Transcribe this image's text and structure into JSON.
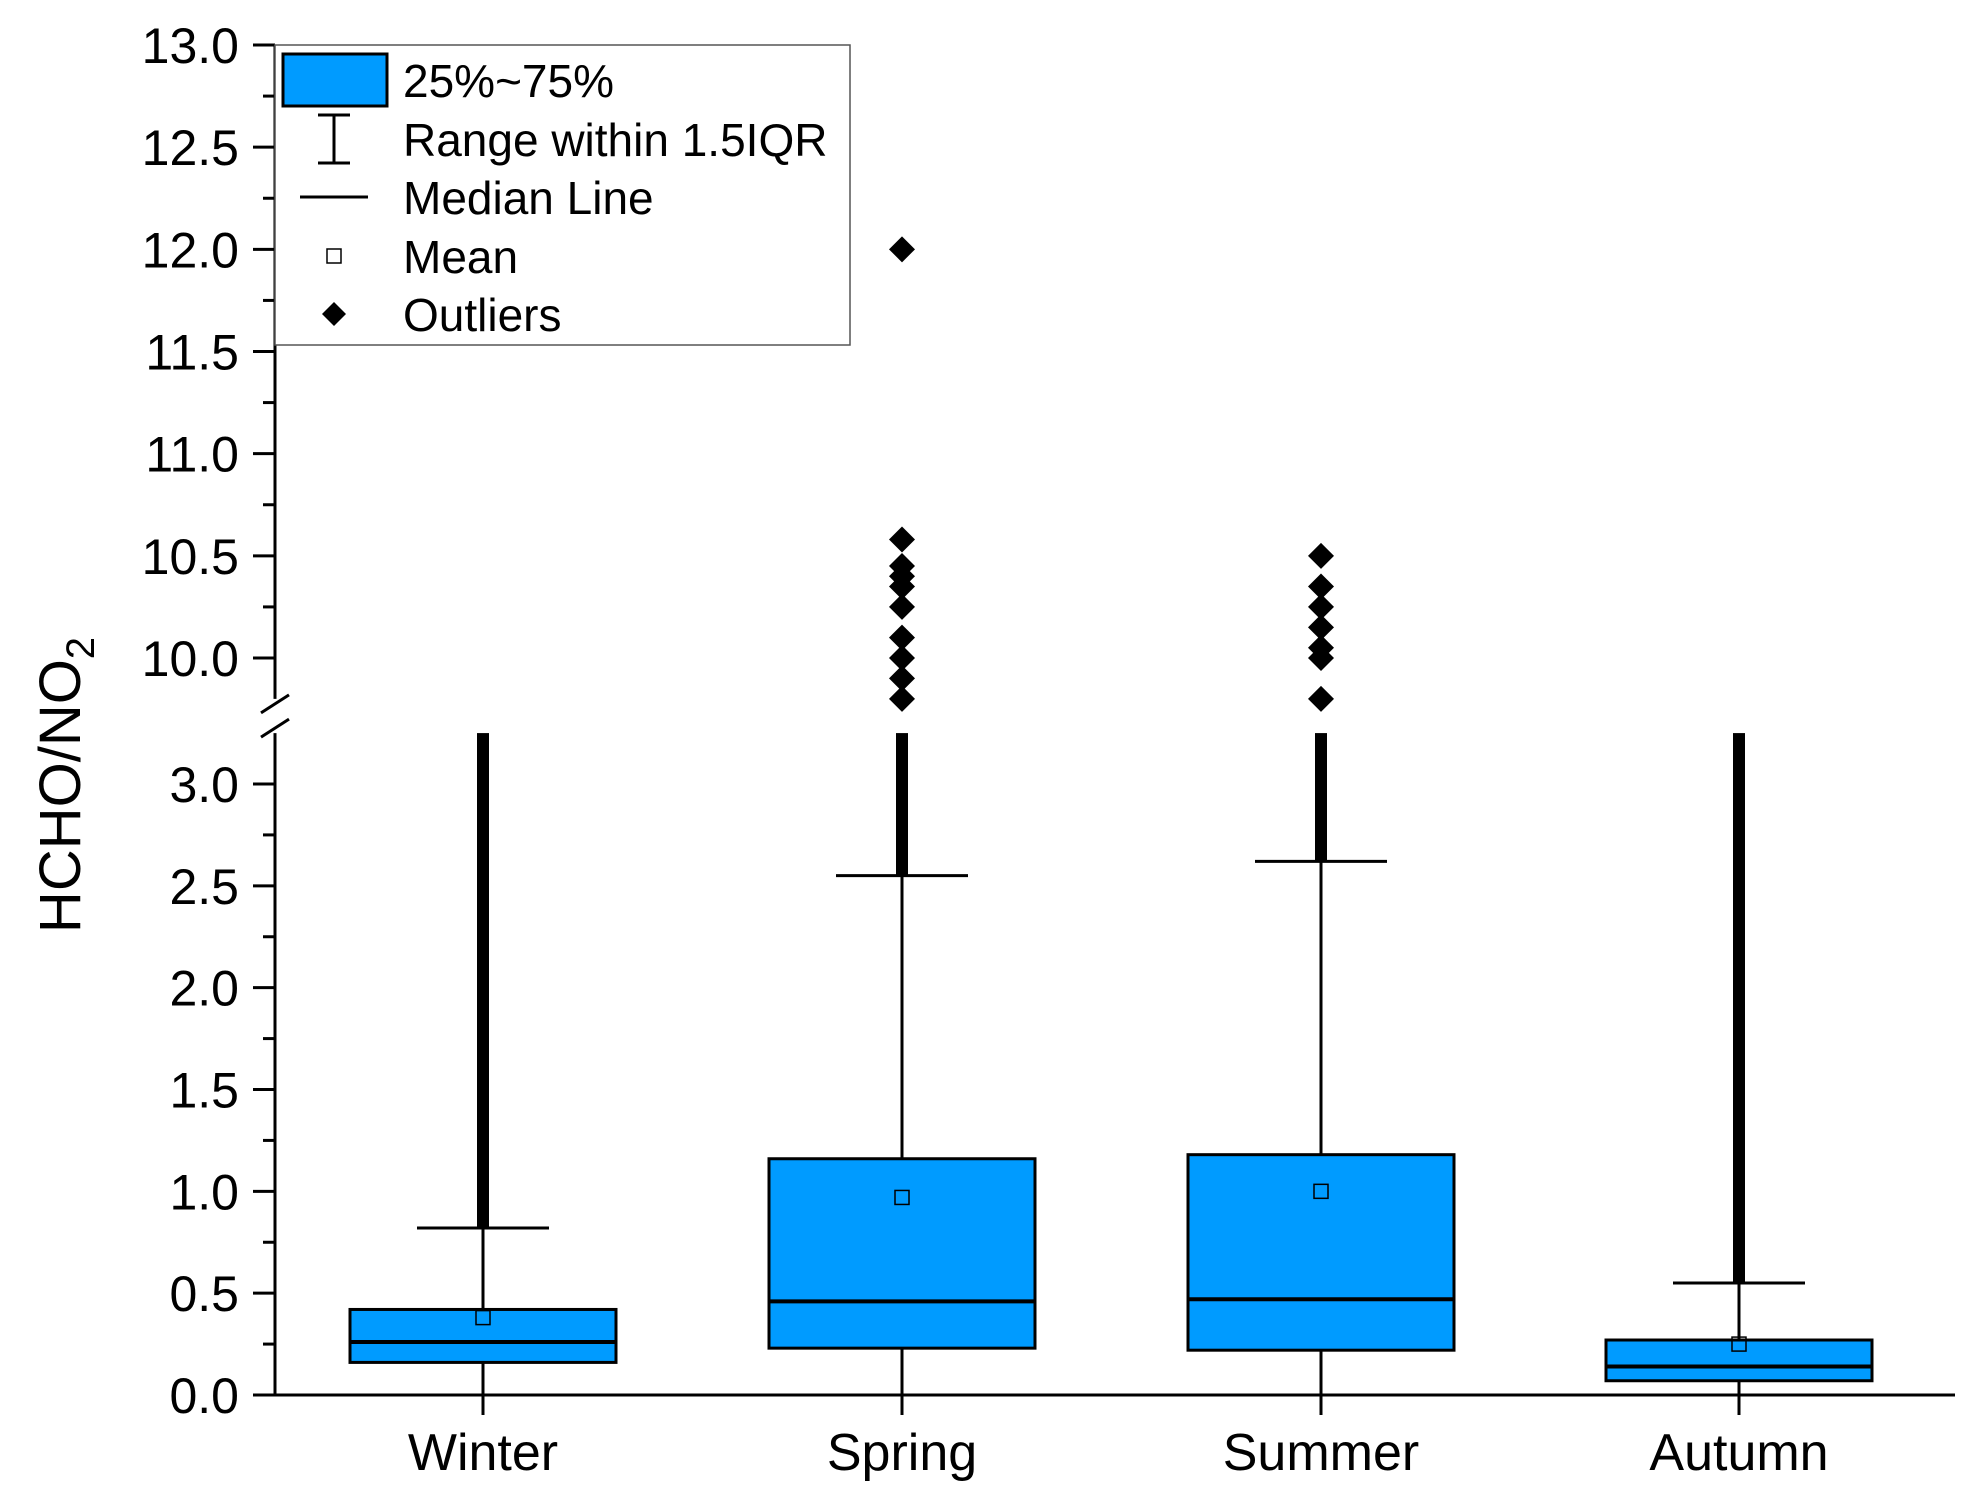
{
  "colors": {
    "box_fill": "#009BFF",
    "stroke": "#000000",
    "background": "#ffffff"
  },
  "chart_data": {
    "type": "box",
    "title": "",
    "xlabel": "",
    "ylabel": "HCHO/NO",
    "ylabel_subscript": "2",
    "categories": [
      "Winter",
      "Spring",
      "Summer",
      "Autumn"
    ],
    "axis_break": {
      "lower_range": [
        0,
        3.25
      ],
      "upper_range": [
        9.8,
        13.0
      ]
    },
    "lower_ticks": [
      "0.0",
      "0.5",
      "1.0",
      "1.5",
      "2.0",
      "2.5",
      "3.0"
    ],
    "upper_ticks": [
      "10.0",
      "10.5",
      "11.0",
      "11.5",
      "12.0",
      "12.5",
      "13.0"
    ],
    "boxes": [
      {
        "name": "Winter",
        "min": 0.0,
        "q1": 0.16,
        "median": 0.26,
        "q3": 0.42,
        "whisker_high": 0.82,
        "mean": 0.38,
        "outliers_band": [
          0.82,
          3.25
        ],
        "outliers_upper": []
      },
      {
        "name": "Spring",
        "min": 0.0,
        "q1": 0.23,
        "median": 0.46,
        "q3": 1.16,
        "whisker_high": 2.55,
        "mean": 0.97,
        "outliers_band": [
          2.55,
          3.25
        ],
        "outliers_upper": [
          9.8,
          9.9,
          10.0,
          10.1,
          10.25,
          10.35,
          10.4,
          10.45,
          10.58,
          12.0
        ]
      },
      {
        "name": "Summer",
        "min": 0.0,
        "q1": 0.22,
        "median": 0.47,
        "q3": 1.18,
        "whisker_high": 2.62,
        "mean": 1.0,
        "outliers_band": [
          2.62,
          3.25
        ],
        "outliers_upper": [
          9.8,
          10.0,
          10.05,
          10.15,
          10.25,
          10.35,
          10.5
        ]
      },
      {
        "name": "Autumn",
        "min": 0.0,
        "q1": 0.07,
        "median": 0.14,
        "q3": 0.27,
        "whisker_high": 0.55,
        "mean": 0.25,
        "outliers_band": [
          0.55,
          3.25
        ],
        "outliers_upper": []
      }
    ],
    "legend": {
      "position": "top-left",
      "entries": [
        {
          "symbol": "box",
          "label": "25%~75%"
        },
        {
          "symbol": "whisker",
          "label": "Range within 1.5IQR"
        },
        {
          "symbol": "line",
          "label": "Median Line"
        },
        {
          "symbol": "open-square",
          "label": "Mean"
        },
        {
          "symbol": "diamond",
          "label": "Outliers"
        }
      ]
    }
  }
}
